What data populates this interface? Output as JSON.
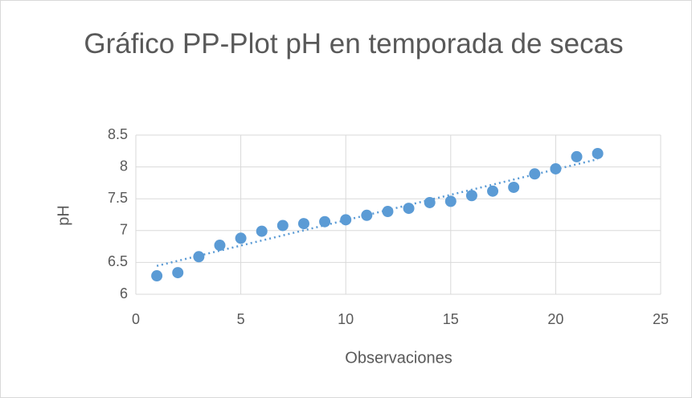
{
  "chart_data": {
    "type": "scatter",
    "title": "Gráfico PP-Plot pH en temporada de secas",
    "xlabel": "Observaciones",
    "ylabel": "pH",
    "x": [
      1,
      2,
      3,
      4,
      5,
      6,
      7,
      8,
      9,
      10,
      11,
      12,
      13,
      14,
      15,
      16,
      17,
      18,
      19,
      20,
      21,
      22
    ],
    "series": [
      {
        "name": "pH",
        "color": "#5b9bd5",
        "values": [
          6.29,
          6.34,
          6.59,
          6.77,
          6.88,
          6.99,
          7.08,
          7.11,
          7.14,
          7.17,
          7.24,
          7.3,
          7.35,
          7.44,
          7.46,
          7.55,
          7.62,
          7.68,
          7.89,
          7.97,
          8.16,
          8.21
        ]
      }
    ],
    "trendline": "linear",
    "xlim": [
      0,
      25
    ],
    "xticks": [
      0,
      5,
      10,
      15,
      20,
      25
    ],
    "ylim": [
      6,
      8.5
    ],
    "yticks": [
      6,
      {
        "value": 6.5,
        "label": "6.5"
      },
      7,
      {
        "value": 7.5,
        "label": "7.5"
      },
      8,
      {
        "value": 8.5,
        "label": "8.5"
      }
    ],
    "grid": true
  }
}
